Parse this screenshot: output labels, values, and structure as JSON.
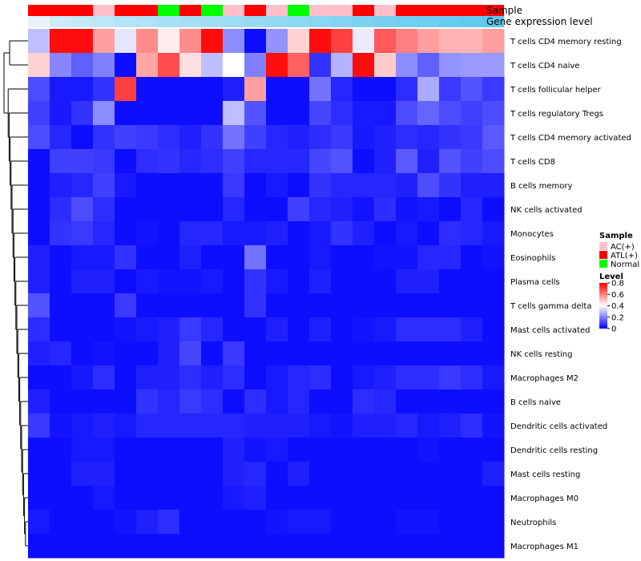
{
  "chart_data": {
    "type": "heatmap",
    "title": "",
    "annotation_labels": {
      "sample": "Sample",
      "gene_expression": "Gene expression level"
    },
    "sample_groups": [
      "ATL(+)",
      "ATL(+)",
      "ATL(+)",
      "AC(+)",
      "ATL(+)",
      "ATL(+)",
      "Normal",
      "ATL(+)",
      "Normal",
      "AC(+)",
      "ATL(+)",
      "AC(+)",
      "Normal",
      "AC(+)",
      "AC(+)",
      "ATL(+)",
      "AC(+)",
      "ATL(+)",
      "ATL(+)",
      "ATL(+)",
      "ATL(+)",
      "ATL(+)"
    ],
    "expression_levels": [
      0,
      0.01,
      0.02,
      0.03,
      0.05,
      0.07,
      0.09,
      0.11,
      0.13,
      0.16,
      0.19,
      0.22,
      0.26,
      0.31,
      0.36,
      0.42,
      0.49,
      0.56,
      0.64,
      0.72,
      0.8,
      0.9
    ],
    "rows": [
      "T cells CD4 memory resting",
      "T cells CD4 naive",
      "T cells follicular helper",
      "T cells regulatory  Tregs",
      "T cells CD4 memory activated",
      "T cells CD8",
      "B cells memory",
      "NK cells activated",
      "Monocytes",
      "Eosinophils",
      "Plasma cells",
      "T cells gamma delta",
      "Mast cells activated",
      "NK cells resting",
      "Macrophages M2",
      "B cells naive",
      "Dendritic cells activated",
      "Dendritic cells resting",
      "Mast cells resting",
      "Macrophages M0",
      "Neutrophils",
      "Macrophages M1"
    ],
    "values": [
      [
        0.3,
        0.78,
        0.78,
        0.55,
        0.36,
        0.58,
        0.43,
        0.58,
        0.78,
        0.22,
        0.02,
        0.23,
        0.47,
        0.78,
        0.7,
        0.37,
        0.66,
        0.6,
        0.55,
        0.52,
        0.52,
        0.55
      ],
      [
        0.47,
        0.21,
        0.15,
        0.2,
        0.02,
        0.54,
        0.68,
        0.45,
        0.3,
        0.4,
        0.2,
        0.78,
        0.65,
        0.08,
        0.28,
        0.78,
        0.48,
        0.22,
        0.15,
        0.23,
        0.24,
        0.24
      ],
      [
        0.12,
        0.04,
        0.04,
        0.08,
        0.7,
        0.02,
        0.02,
        0.02,
        0.02,
        0.05,
        0.55,
        0.02,
        0.02,
        0.18,
        0.06,
        0.02,
        0.02,
        0.07,
        0.27,
        0.09,
        0.13,
        0.09
      ],
      [
        0.1,
        0.04,
        0.08,
        0.22,
        0.02,
        0.02,
        0.02,
        0.02,
        0.02,
        0.3,
        0.13,
        0.02,
        0.02,
        0.11,
        0.07,
        0.04,
        0.04,
        0.12,
        0.16,
        0.12,
        0.1,
        0.12
      ],
      [
        0.12,
        0.06,
        0.02,
        0.08,
        0.1,
        0.09,
        0.07,
        0.05,
        0.08,
        0.18,
        0.1,
        0.06,
        0.05,
        0.07,
        0.09,
        0.04,
        0.05,
        0.07,
        0.06,
        0.08,
        0.09,
        0.14
      ],
      [
        0.02,
        0.1,
        0.1,
        0.09,
        0.02,
        0.07,
        0.08,
        0.06,
        0.07,
        0.1,
        0.06,
        0.06,
        0.06,
        0.11,
        0.13,
        0.02,
        0.05,
        0.14,
        0.05,
        0.13,
        0.1,
        0.12
      ],
      [
        0.02,
        0.05,
        0.06,
        0.1,
        0.04,
        0.02,
        0.02,
        0.02,
        0.02,
        0.09,
        0.02,
        0.04,
        0.02,
        0.08,
        0.06,
        0.06,
        0.06,
        0.05,
        0.12,
        0.08,
        0.05,
        0.05
      ],
      [
        0.02,
        0.07,
        0.12,
        0.07,
        0.02,
        0.02,
        0.02,
        0.02,
        0.02,
        0.06,
        0.02,
        0.02,
        0.1,
        0.06,
        0.05,
        0.03,
        0.07,
        0.03,
        0.04,
        0.02,
        0.06,
        0.02
      ],
      [
        0.02,
        0.08,
        0.09,
        0.06,
        0.02,
        0.03,
        0.02,
        0.06,
        0.06,
        0.04,
        0.04,
        0.05,
        0.02,
        0.04,
        0.08,
        0.05,
        0.02,
        0.04,
        0.02,
        0.07,
        0.06,
        0.04
      ],
      [
        0.05,
        0.02,
        0.04,
        0.04,
        0.08,
        0.02,
        0.02,
        0.05,
        0.02,
        0.02,
        0.18,
        0.02,
        0.02,
        0.04,
        0.02,
        0.02,
        0.03,
        0.03,
        0.06,
        0.06,
        0.02,
        0.03
      ],
      [
        0.05,
        0.02,
        0.05,
        0.05,
        0.02,
        0.04,
        0.03,
        0.03,
        0.04,
        0.02,
        0.08,
        0.04,
        0.02,
        0.05,
        0.02,
        0.02,
        0.02,
        0.05,
        0.05,
        0.02,
        0.02,
        0.02
      ],
      [
        0.13,
        0.02,
        0.02,
        0.02,
        0.09,
        0.02,
        0.02,
        0.02,
        0.02,
        0.02,
        0.08,
        0.02,
        0.02,
        0.02,
        0.02,
        0.02,
        0.02,
        0.02,
        0.02,
        0.02,
        0.02,
        0.02
      ],
      [
        0.07,
        0.02,
        0.02,
        0.02,
        0.03,
        0.04,
        0.05,
        0.09,
        0.06,
        0.02,
        0.02,
        0.05,
        0.02,
        0.05,
        0.02,
        0.03,
        0.04,
        0.07,
        0.07,
        0.07,
        0.05,
        0.02
      ],
      [
        0.05,
        0.06,
        0.02,
        0.03,
        0.02,
        0.02,
        0.05,
        0.11,
        0.02,
        0.09,
        0.02,
        0.02,
        0.02,
        0.02,
        0.02,
        0.02,
        0.02,
        0.02,
        0.02,
        0.02,
        0.02,
        0.02
      ],
      [
        0.02,
        0.02,
        0.04,
        0.07,
        0.02,
        0.05,
        0.05,
        0.07,
        0.05,
        0.07,
        0.02,
        0.04,
        0.06,
        0.07,
        0.02,
        0.04,
        0.05,
        0.07,
        0.07,
        0.09,
        0.07,
        0.04
      ],
      [
        0.05,
        0.02,
        0.02,
        0.02,
        0.02,
        0.08,
        0.06,
        0.09,
        0.07,
        0.02,
        0.07,
        0.04,
        0.06,
        0.02,
        0.02,
        0.07,
        0.06,
        0.02,
        0.02,
        0.02,
        0.02,
        0.02
      ],
      [
        0.09,
        0.03,
        0.04,
        0.05,
        0.04,
        0.06,
        0.06,
        0.06,
        0.06,
        0.06,
        0.05,
        0.05,
        0.05,
        0.04,
        0.03,
        0.05,
        0.05,
        0.06,
        0.04,
        0.05,
        0.07,
        0.03
      ],
      [
        0.02,
        0.02,
        0.04,
        0.04,
        0.02,
        0.02,
        0.02,
        0.02,
        0.02,
        0.05,
        0.03,
        0.04,
        0.02,
        0.02,
        0.02,
        0.02,
        0.02,
        0.02,
        0.03,
        0.02,
        0.02,
        0.02
      ],
      [
        0.02,
        0.02,
        0.05,
        0.05,
        0.02,
        0.02,
        0.02,
        0.02,
        0.02,
        0.05,
        0.06,
        0.02,
        0.05,
        0.02,
        0.02,
        0.02,
        0.02,
        0.02,
        0.02,
        0.02,
        0.02,
        0.05
      ],
      [
        0.02,
        0.02,
        0.02,
        0.04,
        0.02,
        0.02,
        0.02,
        0.02,
        0.02,
        0.04,
        0.05,
        0.02,
        0.02,
        0.02,
        0.02,
        0.02,
        0.02,
        0.02,
        0.02,
        0.02,
        0.02,
        0.02
      ],
      [
        0.04,
        0.02,
        0.02,
        0.02,
        0.03,
        0.05,
        0.07,
        0.02,
        0.02,
        0.02,
        0.02,
        0.03,
        0.04,
        0.04,
        0.02,
        0.02,
        0.02,
        0.03,
        0.03,
        0.02,
        0.02,
        0.02
      ],
      [
        0.02,
        0.02,
        0.02,
        0.02,
        0.02,
        0.02,
        0.02,
        0.02,
        0.02,
        0.02,
        0.02,
        0.02,
        0.02,
        0.02,
        0.02,
        0.02,
        0.02,
        0.02,
        0.02,
        0.02,
        0.02,
        0.02
      ]
    ],
    "color_scale": {
      "min": 0,
      "max": 0.8,
      "low": "#0000ff",
      "mid": "#ffffff",
      "high": "#ff0000",
      "mid_value": 0.4
    },
    "sample_legend": {
      "title": "Sample",
      "items": [
        {
          "label": "AC(+)",
          "color": "#ffc0cb"
        },
        {
          "label": "ATL(+)",
          "color": "#ff0000"
        },
        {
          "label": "Normal",
          "color": "#00ff00"
        }
      ]
    },
    "level_legend": {
      "title": "Level",
      "ticks": [
        "0.8",
        "0.6",
        "0.4",
        "0.2",
        "0"
      ]
    }
  }
}
